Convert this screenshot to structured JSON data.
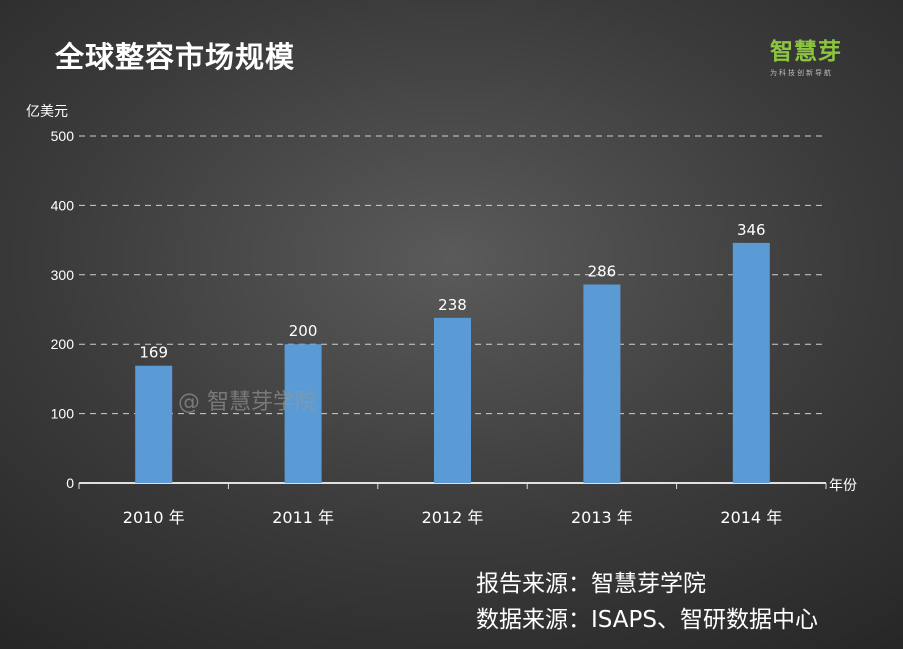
{
  "title": "全球整容市场规模",
  "logo": {
    "text": "智慧芽",
    "slogan": "为科技创新导航"
  },
  "watermark": "@ 智慧芽学院",
  "sources": [
    "报告来源：智慧芽学院",
    "数据来源：ISAPS、智研数据中心"
  ],
  "colors": {
    "bar": "#5b9bd5",
    "text": "#ffffff",
    "grid": "#cfcfcf",
    "logo": "#8cc63f"
  },
  "chart_data": {
    "type": "bar",
    "title": "全球整容市场规模",
    "ylabel": "亿美元",
    "xlabel": "年份",
    "categories": [
      "2010 年",
      "2011 年",
      "2012 年",
      "2013 年",
      "2014 年"
    ],
    "values": [
      169,
      200,
      238,
      286,
      346
    ],
    "value_labels": [
      "169",
      "200",
      "238",
      "286",
      "346"
    ],
    "yticks": [
      "0",
      "100",
      "200",
      "300",
      "400",
      "500"
    ],
    "ylim": [
      0,
      500
    ],
    "grid": true
  }
}
